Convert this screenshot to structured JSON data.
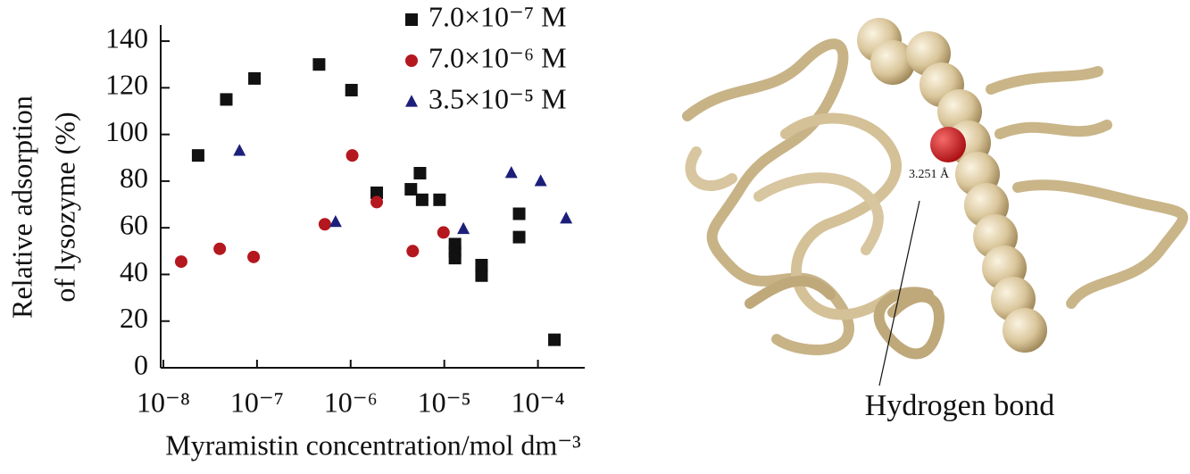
{
  "chart_data": {
    "type": "scatter",
    "x_label": "Myramistin concentration/mol dm⁻³",
    "y_label": [
      "Relative adsorption",
      "of lysozyme (%)"
    ],
    "xscale": "log",
    "xlim": [
      1e-08,
      0.000316
    ],
    "xticks": [
      {
        "value": 1e-08,
        "label": "10⁻⁸"
      },
      {
        "value": 1e-07,
        "label": "10⁻⁷"
      },
      {
        "value": 1e-06,
        "label": "10⁻⁶"
      },
      {
        "value": 1e-05,
        "label": "10⁻⁵"
      },
      {
        "value": 0.0001,
        "label": "10⁻⁴"
      }
    ],
    "ylim": [
      0,
      145
    ],
    "yticks": [
      0,
      20,
      40,
      60,
      80,
      100,
      120,
      140
    ],
    "legend": "top-right",
    "series": [
      {
        "name": "7.0×10⁻⁷ M",
        "color": "#111111",
        "marker": "square",
        "x": [
          2.35e-08,
          4.7e-08,
          9.4e-08,
          4.6e-07,
          1.02e-06,
          1.9e-06,
          4.4e-06,
          5.5e-06,
          5.8e-06,
          8.9e-06,
          1.3e-05,
          1.3e-05,
          1.3e-05,
          2.5e-05,
          2.5e-05,
          6.3e-05,
          6.3e-05,
          0.00015
        ],
        "values": [
          91,
          115,
          124,
          130,
          119,
          75,
          76.5,
          83.4,
          72,
          72,
          53,
          50,
          47,
          44,
          39.5,
          66,
          56,
          12
        ]
      },
      {
        "name": "7.0×10⁻⁶ M",
        "color": "#b5171e",
        "marker": "circle",
        "x": [
          1.55e-08,
          4e-08,
          9.2e-08,
          5.3e-07,
          1.04e-06,
          1.9e-06,
          4.6e-06,
          9.8e-06
        ],
        "values": [
          45.5,
          51,
          47.5,
          61.5,
          91,
          71,
          50,
          58
        ]
      },
      {
        "name": "3.5×10⁻⁵ M",
        "color": "#1c1f7a",
        "marker": "triangle",
        "x": [
          6.5e-08,
          6.9e-07,
          1.6e-05,
          5.2e-05,
          0.000107,
          0.0002
        ],
        "values": [
          93,
          62.5,
          59.5,
          83.5,
          80,
          64
        ]
      }
    ]
  },
  "image": {
    "annotations": [
      "Hydrogen bond",
      "3.251 Å"
    ]
  }
}
